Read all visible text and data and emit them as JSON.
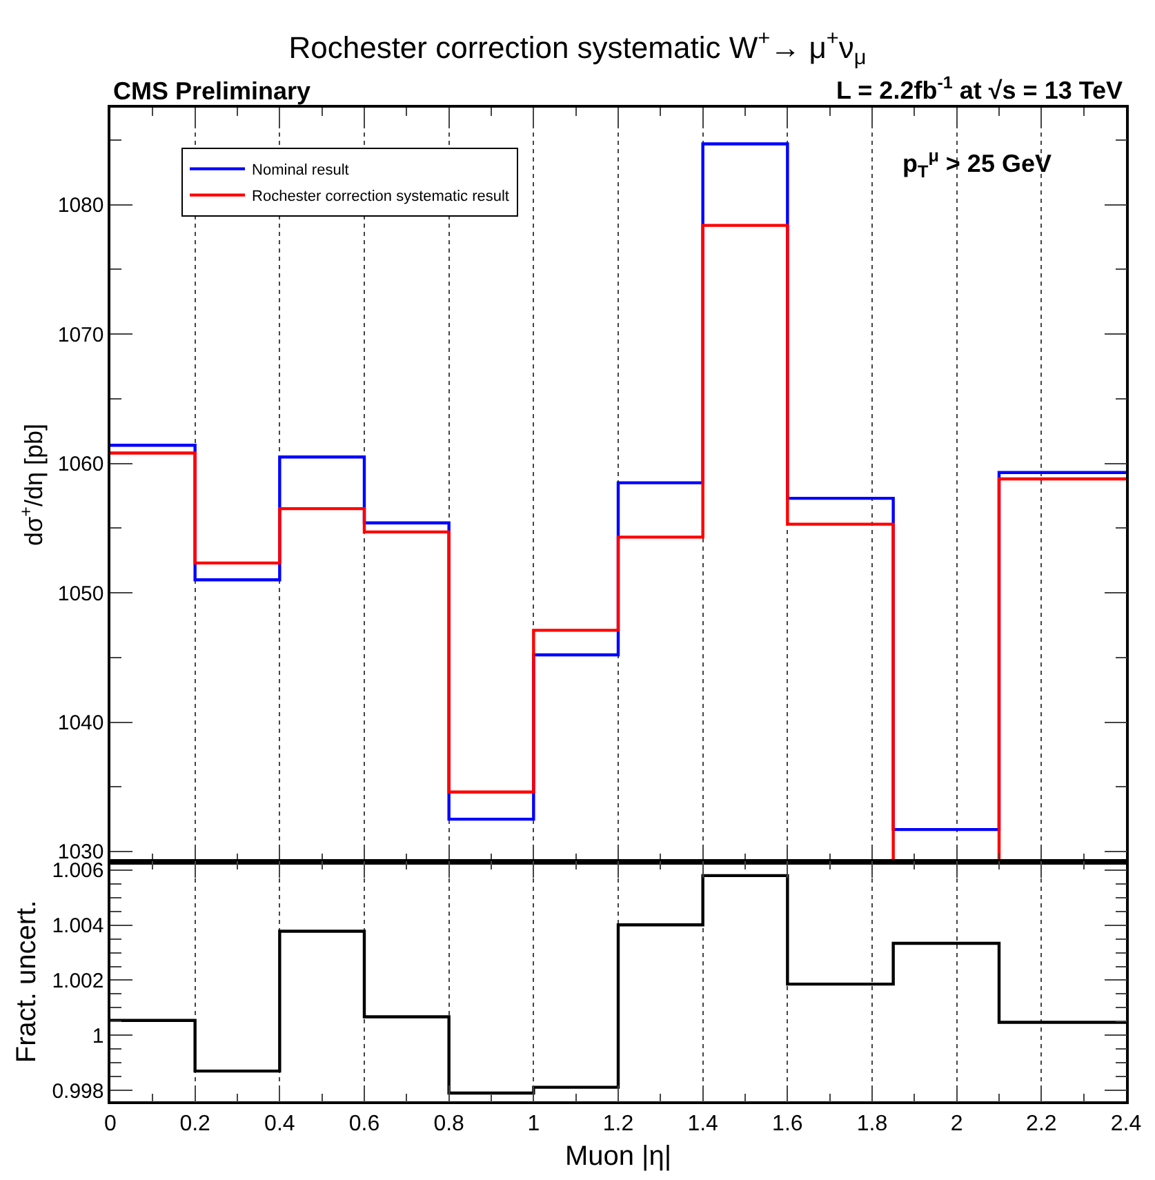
{
  "chart_data": [
    {
      "type": "histogram",
      "title": "Rochester correction systematic W$^{+}$→ μ$^{+}$ν$_{μ}$",
      "ylabel": "dσ$^{+}$/dη [pb]",
      "bins": [
        0,
        0.2,
        0.4,
        0.6,
        0.8,
        1.0,
        1.2,
        1.4,
        1.6,
        1.85,
        2.1,
        2.4
      ],
      "series": [
        {
          "name": "Nominal result",
          "color": "#0000ff",
          "values": [
            1061.4,
            1051.0,
            1060.5,
            1055.4,
            1032.5,
            1045.2,
            1058.5,
            1084.7,
            1057.3,
            1031.7,
            1059.3
          ]
        },
        {
          "name": "Rochester correction systematic result",
          "color": "#ff0000",
          "values": [
            1060.8,
            1052.3,
            1056.5,
            1054.7,
            1034.6,
            1047.1,
            1054.3,
            1078.4,
            1055.3,
            null,
            1058.8
          ]
        }
      ],
      "xlim": [
        0,
        2.4
      ],
      "xticks": [
        0,
        0.2,
        0.4,
        0.6,
        0.8,
        1,
        1.2,
        1.4,
        1.6,
        1.8,
        2,
        2.2,
        2.4
      ],
      "ylim": [
        1029.2,
        1087.5
      ],
      "yticks": [
        1030,
        1040,
        1050,
        1060,
        1070,
        1080
      ],
      "tick_labels": "y",
      "grid": "x",
      "legend": "top left",
      "annotations": [
        "CMS Preliminary",
        "L = 2.2fb$^{-1}$ at √s = 13 TeV",
        "p$_{T}$$^{μ}$ > 25 GeV"
      ]
    },
    {
      "type": "histogram",
      "xlabel": "Muon |η|",
      "ylabel": "Fract. uncert.",
      "bins": [
        0,
        0.2,
        0.4,
        0.6,
        0.8,
        1.0,
        1.2,
        1.4,
        1.6,
        1.85,
        2.1,
        2.4
      ],
      "series": [
        {
          "color": "#000000",
          "values": [
            1.00054,
            0.9987,
            1.00378,
            1.00067,
            0.9979,
            0.99811,
            1.00401,
            1.0058,
            1.00186,
            1.00334,
            1.00047
          ]
        }
      ],
      "xlim": [
        0,
        2.4
      ],
      "xticks": [
        0,
        0.2,
        0.4,
        0.6,
        0.8,
        1,
        1.2,
        1.4,
        1.6,
        1.8,
        2,
        2.2,
        2.4
      ],
      "ylim": [
        0.9976,
        1.0063
      ],
      "yticks": [
        0.998,
        1,
        1.002,
        1.004,
        1.006
      ],
      "grid": "x",
      "legend": false
    }
  ]
}
